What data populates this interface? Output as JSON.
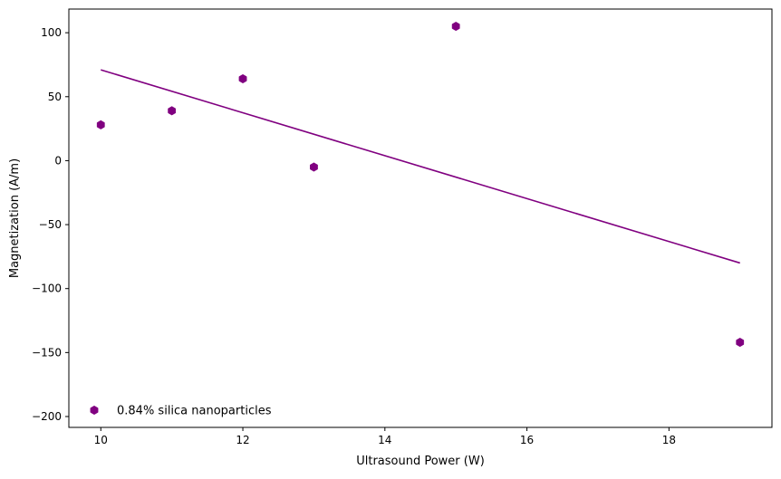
{
  "chart_data": {
    "type": "scatter",
    "title": "",
    "xlabel": "Ultrasound Power (W)",
    "ylabel": "Magnetization (A/m)",
    "xlim": [
      9.55,
      19.45
    ],
    "ylim": [
      -208.5,
      118.5
    ],
    "xticks": [
      10,
      12,
      14,
      16,
      18
    ],
    "yticks": [
      -200,
      -150,
      -100,
      -50,
      0,
      50,
      100
    ],
    "x_tick_labels": [
      "10",
      "12",
      "14",
      "16",
      "18"
    ],
    "y_tick_labels": [
      "−200",
      "−150",
      "−100",
      "−50",
      "0",
      "50",
      "100"
    ],
    "grid": false,
    "legend_position": "lower-left",
    "series": [
      {
        "name": "0.84% silica nanoparticles",
        "type": "scatter",
        "marker": "hexagon",
        "color": "#800080",
        "x": [
          10,
          11,
          12,
          13,
          15,
          19
        ],
        "y": [
          28,
          39,
          64,
          -5,
          105,
          -142
        ]
      },
      {
        "type": "line",
        "color": "#800080",
        "x": [
          10,
          19
        ],
        "y": [
          71,
          -80
        ]
      }
    ]
  }
}
